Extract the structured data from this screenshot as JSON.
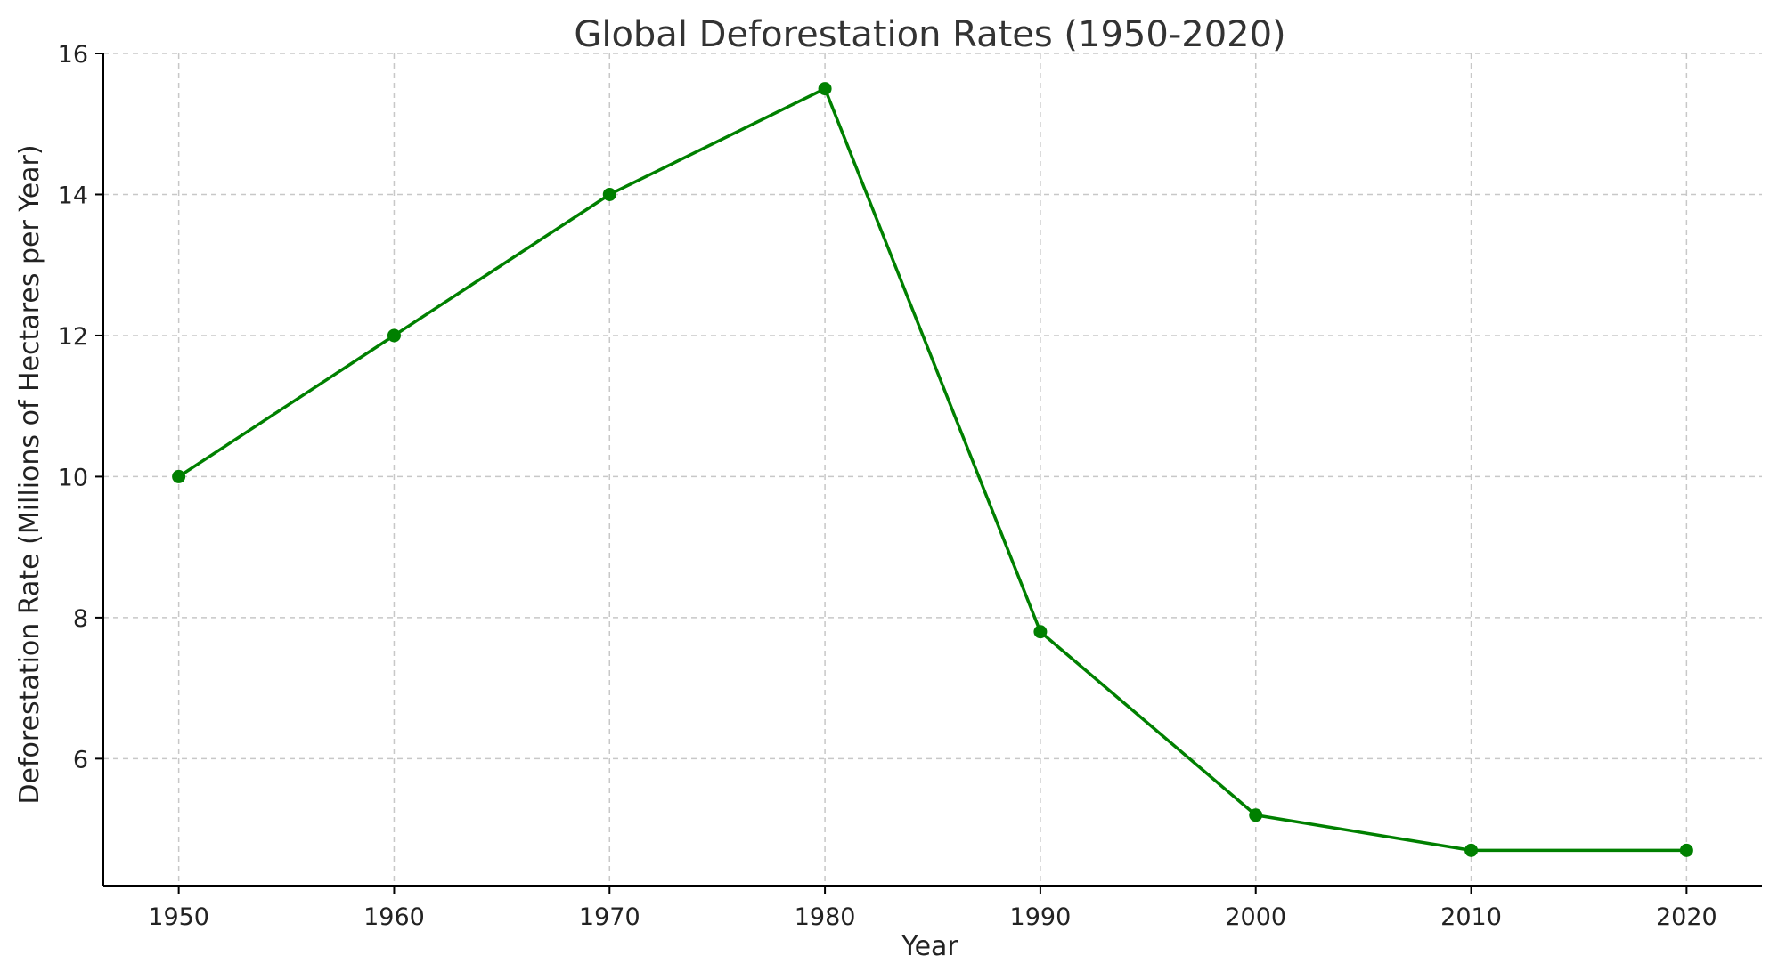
{
  "chart_data": {
    "type": "line",
    "title": "Global Deforestation Rates (1950-2020)",
    "xlabel": "Year",
    "ylabel": "Deforestation Rate (Millions of Hectares per Year)",
    "x": [
      1950,
      1960,
      1970,
      1980,
      1990,
      2000,
      2010,
      2020
    ],
    "series": [
      {
        "values": [
          10,
          12,
          14,
          15.5,
          7.8,
          5.2,
          4.7,
          4.7
        ]
      }
    ],
    "xticks": [
      1950,
      1960,
      1970,
      1980,
      1990,
      2000,
      2010,
      2020
    ],
    "yticks": [
      6,
      8,
      10,
      12,
      14,
      16
    ],
    "xlim": [
      1946.5,
      2023.5
    ],
    "ylim": [
      4.2,
      16
    ],
    "grid": true,
    "line_color": "#008000",
    "grid_color": "#c8c8c8"
  }
}
